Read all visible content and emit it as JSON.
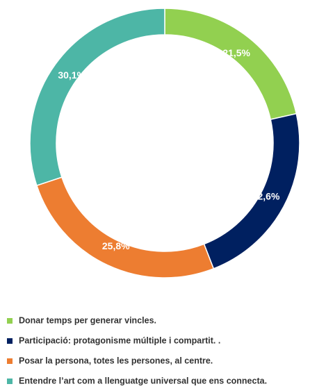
{
  "chart_data": {
    "type": "donut",
    "categories": [
      "Donar temps per generar vincles.",
      "Participació: protagonisme múltiple i compartit. .",
      "Posar la persona, totes les persones, al centre.",
      "Entendre l’art com a llenguatge universal que ens connecta."
    ],
    "values": [
      21.5,
      22.6,
      25.8,
      30.1
    ],
    "value_labels": [
      "21,5%",
      "22,6%",
      "25,8%",
      "30,1%"
    ],
    "colors": [
      "#92d050",
      "#002060",
      "#ed7d31",
      "#4db6a6"
    ]
  }
}
